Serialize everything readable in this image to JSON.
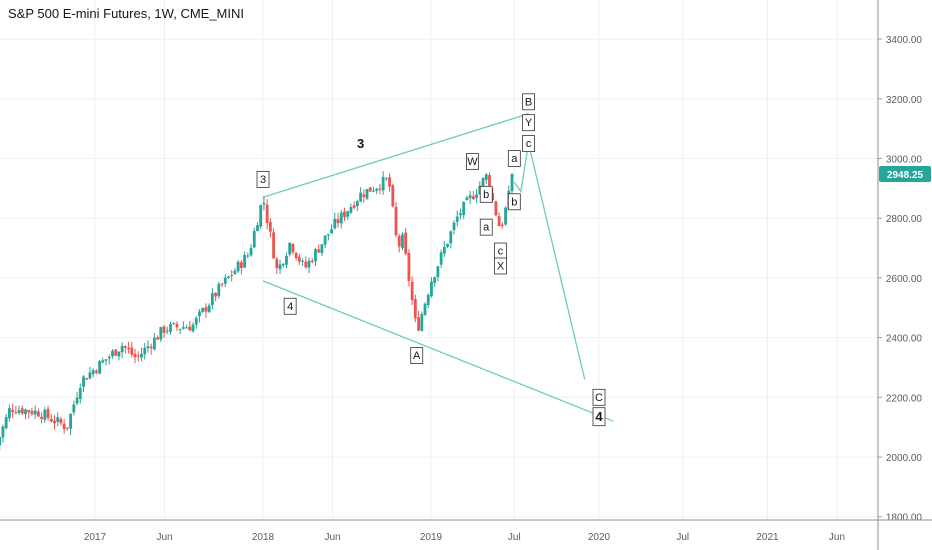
{
  "chart_data": {
    "type": "candlestick",
    "title": "S&P 500 E-mini Futures, 1W, CME_MINI",
    "ylim": [
      1790,
      3560
    ],
    "y_ticks": [
      "3400.00",
      "3200.00",
      "3000.00",
      "2800.00",
      "2600.00",
      "2400.00",
      "2200.00",
      "2000.00",
      "1800.00"
    ],
    "x_ticks": [
      "2017",
      "Jun",
      "2018",
      "Jun",
      "2019",
      "Jul",
      "2020",
      "Jul",
      "2021",
      "Jun"
    ],
    "x_tick_dates": [
      "2017-01",
      "2017-06",
      "2018-01",
      "2018-06",
      "2019-01",
      "2019-07",
      "2020-01",
      "2020-07",
      "2021-01",
      "2021-06"
    ],
    "last_price": "2948.25",
    "colors": {
      "up": "#26a69a",
      "down": "#ef5350",
      "wave_lines": "#6fcfa8",
      "price_tag": "#26a69a",
      "grid": "#eef0f3",
      "axis_text": "#555c66"
    },
    "price_series": {
      "period": "1W",
      "start": "2016-06",
      "end": "2019-07",
      "anchors": [
        [
          "2016-06",
          2040
        ],
        [
          "2016-07",
          2165
        ],
        [
          "2016-09",
          2150
        ],
        [
          "2016-11",
          2100
        ],
        [
          "2016-12",
          2255
        ],
        [
          "2017-03",
          2375
        ],
        [
          "2017-04",
          2330
        ],
        [
          "2017-06",
          2430
        ],
        [
          "2017-08",
          2440
        ],
        [
          "2017-10",
          2570
        ],
        [
          "2017-12",
          2680
        ],
        [
          "2018-01",
          2870
        ],
        [
          "2018-02",
          2620
        ],
        [
          "2018-03",
          2720
        ],
        [
          "2018-04",
          2630
        ],
        [
          "2018-06",
          2770
        ],
        [
          "2018-08",
          2880
        ],
        [
          "2018-10",
          2930
        ],
        [
          "2018-10-20",
          2700
        ],
        [
          "2018-11",
          2730
        ],
        [
          "2018-12",
          2420
        ],
        [
          "2019-01",
          2590
        ],
        [
          "2019-03",
          2810
        ],
        [
          "2019-05",
          2940
        ],
        [
          "2019-06",
          2760
        ],
        [
          "2019-07",
          2948.25
        ]
      ]
    },
    "trend_lines": [
      {
        "points": [
          [
            "2018-01",
            2870
          ],
          [
            "2019-08",
            3150
          ]
        ]
      },
      {
        "points": [
          [
            "2018-01",
            2590
          ],
          [
            "2020-02",
            2120
          ]
        ]
      }
    ],
    "wave_path": {
      "points": [
        [
          "2019-07",
          2920
        ],
        [
          "2019-07-15",
          2890
        ],
        [
          "2019-08",
          3050
        ],
        [
          "2019-12",
          2260
        ]
      ]
    },
    "wave_labels": [
      {
        "text": "3",
        "date": "2018-01",
        "price": 2930,
        "boxed": true,
        "bold": false
      },
      {
        "text": "4",
        "date": "2018-03",
        "price": 2505,
        "boxed": true,
        "bold": false
      },
      {
        "text": "3",
        "date": "2018-08",
        "price": 3050,
        "boxed": false,
        "bold": true
      },
      {
        "text": "A",
        "date": "2018-12",
        "price": 2340,
        "boxed": true,
        "bold": false
      },
      {
        "text": "W",
        "date": "2019-04",
        "price": 2990,
        "boxed": true,
        "bold": false
      },
      {
        "text": "b",
        "date": "2019-05",
        "price": 2880,
        "boxed": true,
        "bold": false
      },
      {
        "text": "a",
        "date": "2019-05-01",
        "price": 2770,
        "boxed": true,
        "bold": false
      },
      {
        "text": "c",
        "date": "2019-06",
        "price": 2690,
        "boxed": true,
        "bold": false
      },
      {
        "text": "X",
        "date": "2019-06",
        "price": 2640,
        "boxed": true,
        "bold": false
      },
      {
        "text": "a",
        "date": "2019-07",
        "price": 3000,
        "boxed": true,
        "bold": false
      },
      {
        "text": "b",
        "date": "2019-07",
        "price": 2855,
        "boxed": true,
        "bold": false
      },
      {
        "text": "c",
        "date": "2019-08",
        "price": 3050,
        "boxed": true,
        "bold": false
      },
      {
        "text": "Y",
        "date": "2019-08",
        "price": 3120,
        "boxed": true,
        "bold": false
      },
      {
        "text": "B",
        "date": "2019-08",
        "price": 3190,
        "boxed": true,
        "bold": false
      },
      {
        "text": "C",
        "date": "2020-01",
        "price": 2200,
        "boxed": true,
        "bold": false
      },
      {
        "text": "4",
        "date": "2020-01",
        "price": 2135,
        "boxed": true,
        "bold": true
      }
    ]
  }
}
